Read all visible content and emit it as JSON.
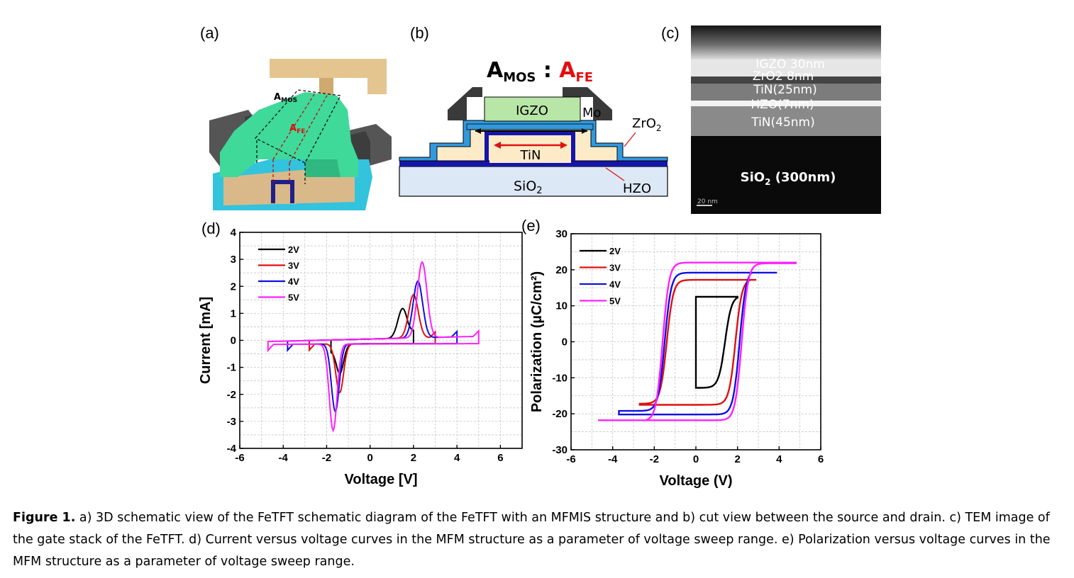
{
  "panels": {
    "a": {
      "label": "(a)",
      "amos_label": "A",
      "amos_sub": "MOS",
      "afe_label": "A",
      "afe_sub": "FE",
      "colors": {
        "body": "#3fd99a",
        "substrate": "#d9b98a",
        "gate": "#202088",
        "contacts": "#4a4a4a"
      }
    },
    "b": {
      "label": "(b)",
      "ratio_A1": "A",
      "ratio_sub1": "MOS",
      "ratio_colon": " : ",
      "ratio_A2": "A",
      "ratio_sub2": "FE",
      "igzo": "IGZO",
      "mo": "Mo",
      "zro2": "ZrO",
      "zro2_sub": "2",
      "tin": "TiN",
      "sio2": "SiO",
      "sio2_sub": "2",
      "hzo": "HZO",
      "colors": {
        "afe": "#e01010",
        "igzo": "#b7e6a6",
        "mo": "#3a3a3a",
        "zro2": "#3399dd",
        "hzo": "#1515aa",
        "tin": "#fdebc8",
        "sio2": "#dce8f5"
      }
    },
    "c": {
      "label": "(c)",
      "layers": [
        "IGZO 30nm",
        "ZrO2 8nm",
        "TiN(25nm)",
        "HZO(7nm)",
        "TiN(45nm)"
      ],
      "sio2_label": "SiO",
      "sio2_sub": "2",
      "sio2_rest": " (300nm)",
      "scale_bar": "20 nm"
    },
    "d": {
      "label": "(d)",
      "xlabel": "Voltage [V]",
      "ylabel": "Current [mA]",
      "x_ticks": [
        "-6",
        "-4",
        "-2",
        "0",
        "2",
        "4",
        "6"
      ],
      "y_ticks": [
        "-4",
        "-3",
        "-2",
        "-1",
        "0",
        "1",
        "2",
        "3",
        "4"
      ]
    },
    "e": {
      "label": "(e)",
      "xlabel": "Voltage (V)",
      "ylabel": "Polarization (µC/cm²)",
      "x_ticks": [
        "-6",
        "-4",
        "-2",
        "0",
        "2",
        "4",
        "6"
      ],
      "y_ticks": [
        "-30",
        "-20",
        "-10",
        "0",
        "10",
        "20",
        "30"
      ]
    }
  },
  "chart_data": [
    {
      "type": "line",
      "title": "",
      "xlabel": "Voltage [V]",
      "ylabel": "Current [mA]",
      "xlim": [
        -6,
        7
      ],
      "ylim": [
        -4,
        4
      ],
      "grid": true,
      "legend_position": "top-left",
      "series": [
        {
          "name": "2V",
          "color": "#000000",
          "amplitude": 2,
          "peak_pos": [
            1.5,
            1.1
          ],
          "peak_neg": [
            -1.4,
            -1.1
          ]
        },
        {
          "name": "3V",
          "color": "#e01010",
          "amplitude": 3,
          "peak_pos": [
            2.0,
            1.6
          ],
          "peak_neg": [
            -1.4,
            -1.8
          ]
        },
        {
          "name": "4V",
          "color": "#1010e0",
          "amplitude": 4,
          "peak_pos": [
            2.2,
            2.1
          ],
          "peak_neg": [
            -1.6,
            -2.5
          ]
        },
        {
          "name": "5V",
          "color": "#ff20ff",
          "amplitude": 5,
          "peak_pos": [
            2.4,
            2.8
          ],
          "peak_neg": [
            -1.7,
            -3.2
          ]
        }
      ]
    },
    {
      "type": "line",
      "title": "",
      "xlabel": "Voltage (V)",
      "ylabel": "Polarization (µC/cm²)",
      "xlim": [
        -6,
        6
      ],
      "ylim": [
        -30,
        30
      ],
      "grid": true,
      "legend_position": "top-left",
      "series": [
        {
          "name": "2V",
          "color": "#000000",
          "vmax": 2.0,
          "vmin": 0,
          "pmax": 12.5,
          "pmin": -12.8,
          "ec_pos": 1.4,
          "ec_neg": -1.1
        },
        {
          "name": "3V",
          "color": "#e01010",
          "vmax": 2.9,
          "vmin": -2.7,
          "pmax": 17.2,
          "pmin": -17.5,
          "ec_pos": 1.9,
          "ec_neg": -1.4
        },
        {
          "name": "4V",
          "color": "#1010e0",
          "vmax": 3.9,
          "vmin": -3.7,
          "pmax": 19.2,
          "pmin": -20.2,
          "ec_pos": 2.1,
          "ec_neg": -1.5
        },
        {
          "name": "5V",
          "color": "#ff20ff",
          "vmax": 4.8,
          "vmin": -4.7,
          "pmax": 22.0,
          "pmin": -21.8,
          "ec_pos": 2.2,
          "ec_neg": -1.6
        }
      ]
    }
  ],
  "caption": {
    "figure_label": "Figure 1.",
    "text": "  a) 3D schematic view of the FeTFT schematic diagram of the FeTFT with an MFMIS structure and b) cut view between the source and drain. c) TEM image of the gate stack of the FeTFT. d) Current versus voltage curves in the MFM structure as a parameter of voltage sweep range. e) Polarization versus voltage curves in the MFM structure as a parameter of voltage sweep range."
  }
}
